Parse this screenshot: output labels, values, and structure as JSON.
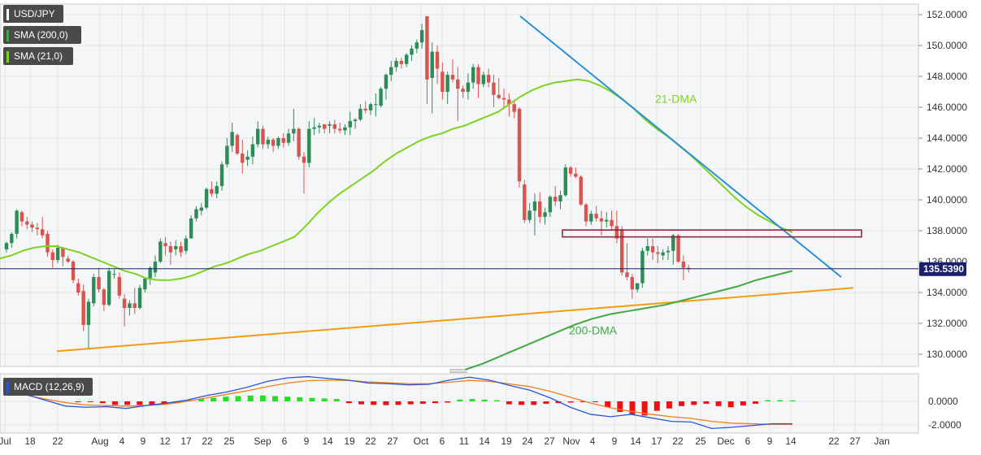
{
  "header": {
    "symbol": "USD/JPY",
    "sma200_label": "SMA (200,0)",
    "sma21_label": "SMA (21,0)",
    "macd_label": "MACD (12,26,9)"
  },
  "colors": {
    "up": "#2e8b57",
    "down": "#d9534f",
    "sma200": "#43a843",
    "sma21": "#7ed321",
    "trend_down": "#2b8fd8",
    "trend_up": "#f39c12",
    "resistance_box": "#8b1a3b",
    "macd_line": "#2a56d6",
    "signal_line": "#f07f1b",
    "hist_up": "#22e022",
    "hist_down": "#ee1111",
    "price_line": "#1a1f6e"
  },
  "chart_data": [
    {
      "type": "candlestick",
      "title": "USD/JPY",
      "y_ticks": [
        "152.0000",
        "150.0000",
        "148.0000",
        "146.0000",
        "144.0000",
        "142.0000",
        "140.0000",
        "138.0000",
        "136.0000",
        "134.0000",
        "132.0000",
        "130.0000"
      ],
      "x_ticks": [
        "Jul",
        "18",
        "22",
        "Aug",
        "4",
        "9",
        "12",
        "17",
        "22",
        "25",
        "Sep",
        "6",
        "9",
        "14",
        "19",
        "22",
        "27",
        "Oct",
        "6",
        "11",
        "14",
        "19",
        "24",
        "27",
        "Nov",
        "4",
        "9",
        "14",
        "17",
        "22",
        "25",
        "Dec",
        "6",
        "9",
        "14",
        "22",
        "27",
        "Jan"
      ],
      "ylim": [
        129.0,
        152.8
      ],
      "current_price_label": "135.5390",
      "current_price": 135.539,
      "annotations": [
        "21-DMA",
        "200-DMA"
      ],
      "candles": [
        [
          136.8,
          137.3,
          136.6,
          137.2
        ],
        [
          137.2,
          137.9,
          136.9,
          137.8
        ],
        [
          137.8,
          139.4,
          137.5,
          139.3
        ],
        [
          139.2,
          139.3,
          138.3,
          138.6
        ],
        [
          138.6,
          138.9,
          138.1,
          138.4
        ],
        [
          138.4,
          138.6,
          137.9,
          138.2
        ],
        [
          138.2,
          138.5,
          137.7,
          138.1
        ],
        [
          138.1,
          138.9,
          137.5,
          137.7
        ],
        [
          137.8,
          138.0,
          136.3,
          136.6
        ],
        [
          136.6,
          136.8,
          135.6,
          136.1
        ],
        [
          136.1,
          137.1,
          135.9,
          136.9
        ],
        [
          136.9,
          136.9,
          135.7,
          136.3
        ],
        [
          136.2,
          136.4,
          135.9,
          136.0
        ],
        [
          136.0,
          136.1,
          134.6,
          134.8
        ],
        [
          134.6,
          134.9,
          133.8,
          134.0
        ],
        [
          134.1,
          134.5,
          131.5,
          131.9
        ],
        [
          131.9,
          133.6,
          130.4,
          133.4
        ],
        [
          133.3,
          135.2,
          133.1,
          135.0
        ],
        [
          135.0,
          135.6,
          134.0,
          134.2
        ],
        [
          134.2,
          134.3,
          132.8,
          133.2
        ],
        [
          133.2,
          135.6,
          133.1,
          135.4
        ],
        [
          135.2,
          135.5,
          134.9,
          135.2
        ],
        [
          135.0,
          135.3,
          133.6,
          133.8
        ],
        [
          133.6,
          133.9,
          131.8,
          133.0
        ],
        [
          133.0,
          133.5,
          132.5,
          133.3
        ],
        [
          133.3,
          134.3,
          132.6,
          133.0
        ],
        [
          133.0,
          134.5,
          132.9,
          134.3
        ],
        [
          134.2,
          135.0,
          134.0,
          134.9
        ],
        [
          134.9,
          135.7,
          134.5,
          135.6
        ],
        [
          135.3,
          136.4,
          135.0,
          136.0
        ],
        [
          136.0,
          137.5,
          135.9,
          137.3
        ],
        [
          137.2,
          137.6,
          136.4,
          137.0
        ],
        [
          137.0,
          137.3,
          135.8,
          136.6
        ],
        [
          136.8,
          137.4,
          136.4,
          137.0
        ],
        [
          137.0,
          137.3,
          136.3,
          136.6
        ],
        [
          136.7,
          137.7,
          136.5,
          137.5
        ],
        [
          137.5,
          139.0,
          137.5,
          138.8
        ],
        [
          138.8,
          139.6,
          138.6,
          139.4
        ],
        [
          139.3,
          139.8,
          139.0,
          139.5
        ],
        [
          139.5,
          140.8,
          139.4,
          140.7
        ],
        [
          140.7,
          141.2,
          140.2,
          140.4
        ],
        [
          140.4,
          141.2,
          140.1,
          140.9
        ],
        [
          140.9,
          142.5,
          140.6,
          142.3
        ],
        [
          142.3,
          144.0,
          142.1,
          143.5
        ],
        [
          143.5,
          145.0,
          143.1,
          144.4
        ],
        [
          144.2,
          144.3,
          142.9,
          143.0
        ],
        [
          143.0,
          143.9,
          141.7,
          142.4
        ],
        [
          142.6,
          143.2,
          142.2,
          142.8
        ],
        [
          142.8,
          144.1,
          142.3,
          143.6
        ],
        [
          143.6,
          145.1,
          143.4,
          144.6
        ],
        [
          144.6,
          144.8,
          143.3,
          143.6
        ],
        [
          143.6,
          144.1,
          143.3,
          143.9
        ],
        [
          143.9,
          144.0,
          143.1,
          143.5
        ],
        [
          143.5,
          144.1,
          143.3,
          144.0
        ],
        [
          144.0,
          144.3,
          143.4,
          143.7
        ],
        [
          143.7,
          144.6,
          143.5,
          144.3
        ],
        [
          144.3,
          145.9,
          143.8,
          144.6
        ],
        [
          144.6,
          144.7,
          142.6,
          142.8
        ],
        [
          142.8,
          143.1,
          140.4,
          142.4
        ],
        [
          142.4,
          145.1,
          142.1,
          144.6
        ],
        [
          144.6,
          145.3,
          144.2,
          144.7
        ],
        [
          144.7,
          145.0,
          144.3,
          144.8
        ],
        [
          144.9,
          144.9,
          144.3,
          144.6
        ],
        [
          144.8,
          145.1,
          144.3,
          144.9
        ],
        [
          144.9,
          145.2,
          144.3,
          144.6
        ],
        [
          144.6,
          145.0,
          144.3,
          144.5
        ],
        [
          144.5,
          144.9,
          144.2,
          144.7
        ],
        [
          144.7,
          145.7,
          144.2,
          145.1
        ],
        [
          145.1,
          145.3,
          144.6,
          145.2
        ],
        [
          145.2,
          146.2,
          145.1,
          145.9
        ],
        [
          145.9,
          146.4,
          145.6,
          145.8
        ],
        [
          145.8,
          146.3,
          145.5,
          146.2
        ],
        [
          146.2,
          146.9,
          145.4,
          146.2
        ],
        [
          146.1,
          147.3,
          146.0,
          147.2
        ],
        [
          147.2,
          148.2,
          146.5,
          148.1
        ],
        [
          148.1,
          149.0,
          147.7,
          148.6
        ],
        [
          148.6,
          149.2,
          148.3,
          149.0
        ],
        [
          149.0,
          149.2,
          148.5,
          148.8
        ],
        [
          148.8,
          149.5,
          148.6,
          149.4
        ],
        [
          149.4,
          150.0,
          149.0,
          149.8
        ],
        [
          149.8,
          150.4,
          149.5,
          150.2
        ],
        [
          150.2,
          151.4,
          149.8,
          151.0
        ],
        [
          151.9,
          151.9,
          146.2,
          147.8
        ],
        [
          147.9,
          150.2,
          145.6,
          149.6
        ],
        [
          149.6,
          150.0,
          147.5,
          148.5
        ],
        [
          148.3,
          148.9,
          146.5,
          147.0
        ],
        [
          147.0,
          148.3,
          146.2,
          148.1
        ],
        [
          148.1,
          149.1,
          147.6,
          147.8
        ],
        [
          147.8,
          148.6,
          145.1,
          147.2
        ],
        [
          147.2,
          147.4,
          146.6,
          147.0
        ],
        [
          147.0,
          148.2,
          146.5,
          147.6
        ],
        [
          147.6,
          148.8,
          147.2,
          148.6
        ],
        [
          148.6,
          148.8,
          146.6,
          147.5
        ],
        [
          147.5,
          148.3,
          147.3,
          148.1
        ],
        [
          148.1,
          148.5,
          147.3,
          147.6
        ],
        [
          147.6,
          148.1,
          146.0,
          146.8
        ],
        [
          146.8,
          147.9,
          146.5,
          146.6
        ],
        [
          146.6,
          147.2,
          146.0,
          146.5
        ],
        [
          146.5,
          146.9,
          145.4,
          146.2
        ],
        [
          146.2,
          146.5,
          145.3,
          145.7
        ],
        [
          145.9,
          146.0,
          140.8,
          141.2
        ],
        [
          141.0,
          141.3,
          138.5,
          138.7
        ],
        [
          138.7,
          139.8,
          138.5,
          139.3
        ],
        [
          139.3,
          140.4,
          137.7,
          139.9
        ],
        [
          139.9,
          140.5,
          138.5,
          138.9
        ],
        [
          138.9,
          139.5,
          138.4,
          139.2
        ],
        [
          139.2,
          140.3,
          138.9,
          140.2
        ],
        [
          140.2,
          140.9,
          139.6,
          139.9
        ],
        [
          139.9,
          140.6,
          139.4,
          140.3
        ],
        [
          140.3,
          142.3,
          140.2,
          142.1
        ],
        [
          142.1,
          142.2,
          141.5,
          141.7
        ],
        [
          141.7,
          142.1,
          141.4,
          141.5
        ],
        [
          141.5,
          141.6,
          139.6,
          139.7
        ],
        [
          139.7,
          139.8,
          138.3,
          138.6
        ],
        [
          138.6,
          139.3,
          138.4,
          139.1
        ],
        [
          139.1,
          139.6,
          138.6,
          138.8
        ],
        [
          138.8,
          139.3,
          137.7,
          138.6
        ],
        [
          138.6,
          139.2,
          138.2,
          138.7
        ],
        [
          138.7,
          139.3,
          138.0,
          138.3
        ],
        [
          138.3,
          139.3,
          137.2,
          137.5
        ],
        [
          138.1,
          138.3,
          135.1,
          135.3
        ],
        [
          135.3,
          137.2,
          134.8,
          135.0
        ],
        [
          135.0,
          135.2,
          133.6,
          134.2
        ],
        [
          134.2,
          134.6,
          134.0,
          134.6
        ],
        [
          134.6,
          136.9,
          134.3,
          136.7
        ],
        [
          136.7,
          137.5,
          136.4,
          137.0
        ],
        [
          137.0,
          137.5,
          136.1,
          136.6
        ],
        [
          136.6,
          137.0,
          135.9,
          136.5
        ],
        [
          136.4,
          136.8,
          136.1,
          136.6
        ],
        [
          136.6,
          137.0,
          136.1,
          136.7
        ],
        [
          136.7,
          137.8,
          135.8,
          137.7
        ],
        [
          137.7,
          137.8,
          135.9,
          136.0
        ],
        [
          136.0,
          136.4,
          134.8,
          135.6
        ],
        [
          135.6,
          135.8,
          135.3,
          135.5
        ]
      ],
      "overlays": {
        "sma21": [
          136.2,
          136.4,
          136.7,
          136.9,
          137.0,
          137.0,
          136.8,
          136.6,
          136.3,
          136.0,
          135.7,
          135.4,
          135.2,
          134.9,
          134.8,
          134.8,
          134.9,
          135.1,
          135.4,
          135.7,
          135.9,
          136.2,
          136.5,
          136.7,
          137.0,
          137.3,
          137.6,
          138.3,
          139.1,
          139.8,
          140.4,
          140.9,
          141.4,
          141.9,
          142.5,
          143.0,
          143.4,
          143.8,
          144.1,
          144.3,
          144.6,
          144.8,
          145.1,
          145.4,
          145.7,
          146.2,
          146.7,
          147.1,
          147.4,
          147.6,
          147.7,
          147.8,
          147.7,
          147.4,
          147.0,
          146.5,
          145.9,
          145.2,
          144.6,
          144.1,
          143.5,
          142.9,
          142.2,
          141.5,
          140.8,
          140.1,
          139.5,
          139.0,
          138.6,
          138.2,
          137.9
        ],
        "sma200": [
          129.0,
          129.4,
          129.9,
          130.4,
          130.9,
          131.4,
          131.9,
          132.3,
          132.6,
          132.8,
          133.0,
          133.2,
          133.5,
          133.8,
          134.1,
          134.4,
          134.8,
          135.1,
          135.4
        ],
        "macd": [
          0.8,
          0.6,
          0.1,
          -0.4,
          -0.5,
          -0.45,
          -0.6,
          -0.35,
          -0.15,
          0.1,
          0.5,
          0.8,
          1.2,
          1.7,
          2.0,
          2.1,
          1.95,
          1.8,
          1.55,
          1.5,
          1.4,
          1.45,
          1.8,
          2.05,
          1.8,
          1.35,
          0.95,
          0.3,
          -0.5,
          -1.1,
          -1.3,
          -1.1,
          -1.4,
          -1.7,
          -1.75,
          -2.3,
          -2.2,
          -2.05,
          -1.9,
          -1.9
        ],
        "signal": [
          0.7,
          0.55,
          0.2,
          -0.1,
          -0.3,
          -0.35,
          -0.4,
          -0.35,
          -0.25,
          0.0,
          0.3,
          0.6,
          0.9,
          1.25,
          1.55,
          1.75,
          1.8,
          1.78,
          1.65,
          1.58,
          1.5,
          1.5,
          1.62,
          1.78,
          1.7,
          1.48,
          1.25,
          0.85,
          0.35,
          -0.15,
          -0.55,
          -0.85,
          -1.1,
          -1.3,
          -1.45,
          -1.7,
          -1.85,
          -1.9,
          -1.95,
          -1.95
        ],
        "histogram": [
          -0.04,
          -0.05,
          -0.15,
          -0.3,
          -0.3,
          -0.3,
          -0.32,
          -0.25,
          -0.15,
          0.1,
          0.2,
          0.3,
          0.4,
          0.45,
          0.5,
          0.5,
          0.45,
          0.4,
          0.35,
          0.3,
          0.25,
          0.2,
          -0.15,
          -0.25,
          -0.3,
          -0.32,
          -0.3,
          -0.25,
          -0.2,
          -0.15,
          -0.1,
          0.15,
          0.2,
          0.15,
          0.1,
          -0.25,
          -0.3,
          -0.3,
          -0.2,
          -0.15,
          -0.1,
          -0.05,
          -0.02,
          -0.5,
          -0.9,
          -1.1,
          -1.2,
          -0.8,
          -0.6,
          -0.4,
          -0.3,
          -0.2,
          -0.4,
          -0.5,
          -0.35,
          -0.2,
          0.1,
          0.1,
          0.08
        ]
      }
    },
    {
      "type": "line",
      "title": "MACD (12,26,9)",
      "y_ticks": [
        "0.0000",
        "-2.0000"
      ],
      "ylim": [
        -2.6,
        2.3
      ]
    }
  ]
}
